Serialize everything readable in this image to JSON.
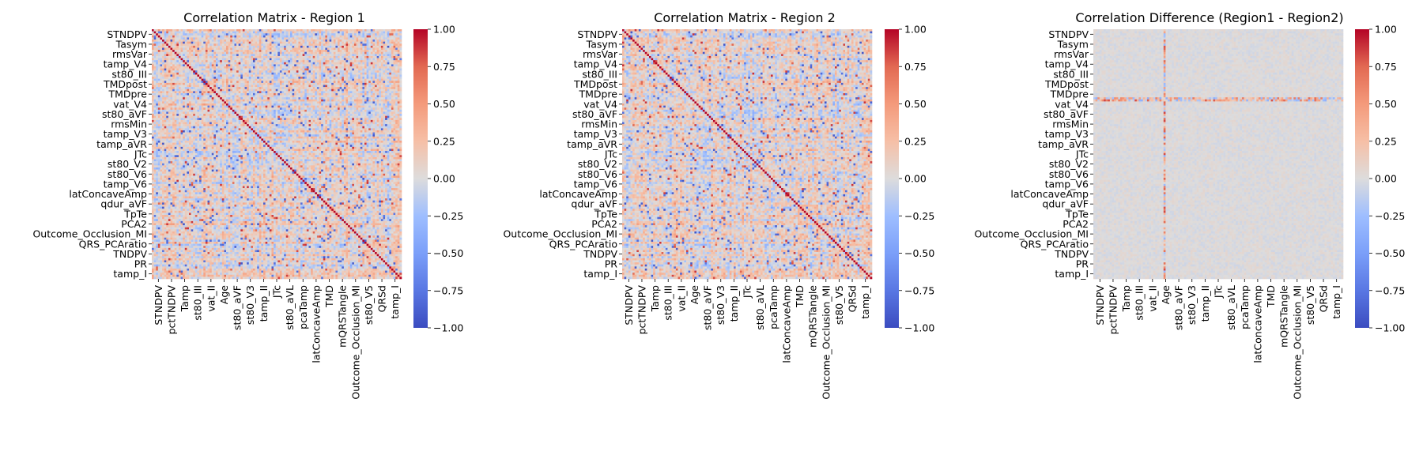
{
  "chart_data": [
    {
      "type": "heatmap",
      "title": "Correlation Matrix - Region 1",
      "matrix_size": 121,
      "ylabels": [
        "STNDPV",
        "Tasym",
        "rmsVar",
        "tamp_V4",
        "st80_III",
        "TMDpost",
        "TMDpre",
        "vat_V4",
        "st80_aVF",
        "rmsMin",
        "tamp_V3",
        "tamp_aVR",
        "JTc",
        "st80_V2",
        "st80_V6",
        "tamp_V6",
        "latConcaveAmp",
        "qdur_aVF",
        "TpTe",
        "PCA2",
        "Outcome_Occlusion_MI",
        "QRS_PCAratio",
        "TNDPV",
        "PR",
        "tamp_I"
      ],
      "xlabels": [
        "STNDPV",
        "pctTNDPV",
        "Tamp",
        "st80_III",
        "vat_II",
        "Age",
        "st80_aVF",
        "st80_V3",
        "tamp_II",
        "JTc",
        "st80_aVL",
        "pcaTamp",
        "latConcaveAmp",
        "TMD",
        "mQRSTangle",
        "Outcome_Occlusion_MI",
        "st80_V5",
        "QRSd",
        "tamp_I"
      ],
      "colorbar": {
        "min": -1.0,
        "max": 1.0,
        "ticks": [
          "1.00",
          "0.75",
          "0.50",
          "0.25",
          "0.00",
          "−0.25",
          "−0.50",
          "−0.75",
          "−1.00"
        ]
      },
      "colormap": "coolwarm",
      "diagonal_value": 1.0
    },
    {
      "type": "heatmap",
      "title": "Correlation Matrix - Region 2",
      "matrix_size": 121,
      "ylabels": [
        "STNDPV",
        "Tasym",
        "rmsVar",
        "tamp_V4",
        "st80_III",
        "TMDpost",
        "TMDpre",
        "vat_V4",
        "st80_aVF",
        "rmsMin",
        "tamp_V3",
        "tamp_aVR",
        "JTc",
        "st80_V2",
        "st80_V6",
        "tamp_V6",
        "latConcaveAmp",
        "qdur_aVF",
        "TpTe",
        "PCA2",
        "Outcome_Occlusion_MI",
        "QRS_PCAratio",
        "TNDPV",
        "PR",
        "tamp_I"
      ],
      "xlabels": [
        "STNDPV",
        "pctTNDPV",
        "Tamp",
        "st80_III",
        "vat_II",
        "Age",
        "st80_aVF",
        "st80_V3",
        "tamp_II",
        "JTc",
        "st80_aVL",
        "pcaTamp",
        "latConcaveAmp",
        "TMD",
        "mQRSTangle",
        "Outcome_Occlusion_MI",
        "st80_V5",
        "QRSd",
        "tamp_I"
      ],
      "colorbar": {
        "min": -1.0,
        "max": 1.0,
        "ticks": [
          "1.00",
          "0.75",
          "0.50",
          "0.25",
          "0.00",
          "−0.25",
          "−0.50",
          "−0.75",
          "−1.00"
        ]
      },
      "colormap": "coolwarm",
      "diagonal_value": 1.0
    },
    {
      "type": "heatmap",
      "title": "Correlation Difference (Region1 - Region2)",
      "matrix_size": 121,
      "ylabels": [
        "STNDPV",
        "Tasym",
        "rmsVar",
        "tamp_V4",
        "st80_III",
        "TMDpost",
        "TMDpre",
        "vat_V4",
        "st80_aVF",
        "rmsMin",
        "tamp_V3",
        "tamp_aVR",
        "JTc",
        "st80_V2",
        "st80_V6",
        "tamp_V6",
        "latConcaveAmp",
        "qdur_aVF",
        "TpTe",
        "PCA2",
        "Outcome_Occlusion_MI",
        "QRS_PCAratio",
        "TNDPV",
        "PR",
        "tamp_I"
      ],
      "xlabels": [
        "STNDPV",
        "pctTNDPV",
        "Tamp",
        "st80_III",
        "vat_II",
        "Age",
        "st80_aVF",
        "st80_V3",
        "tamp_II",
        "JTc",
        "st80_aVL",
        "pcaTamp",
        "latConcaveAmp",
        "TMD",
        "mQRSTangle",
        "Outcome_Occlusion_MI",
        "st80_V5",
        "QRSd",
        "tamp_I"
      ],
      "colorbar": {
        "min": -1.0,
        "max": 1.0,
        "ticks": [
          "1.00",
          "0.75",
          "0.50",
          "0.25",
          "0.00",
          "−0.25",
          "−0.50",
          "−0.75",
          "−1.00"
        ]
      },
      "colormap": "coolwarm",
      "highlighted_feature": "Age",
      "highlighted_row": "TMDpre"
    }
  ]
}
